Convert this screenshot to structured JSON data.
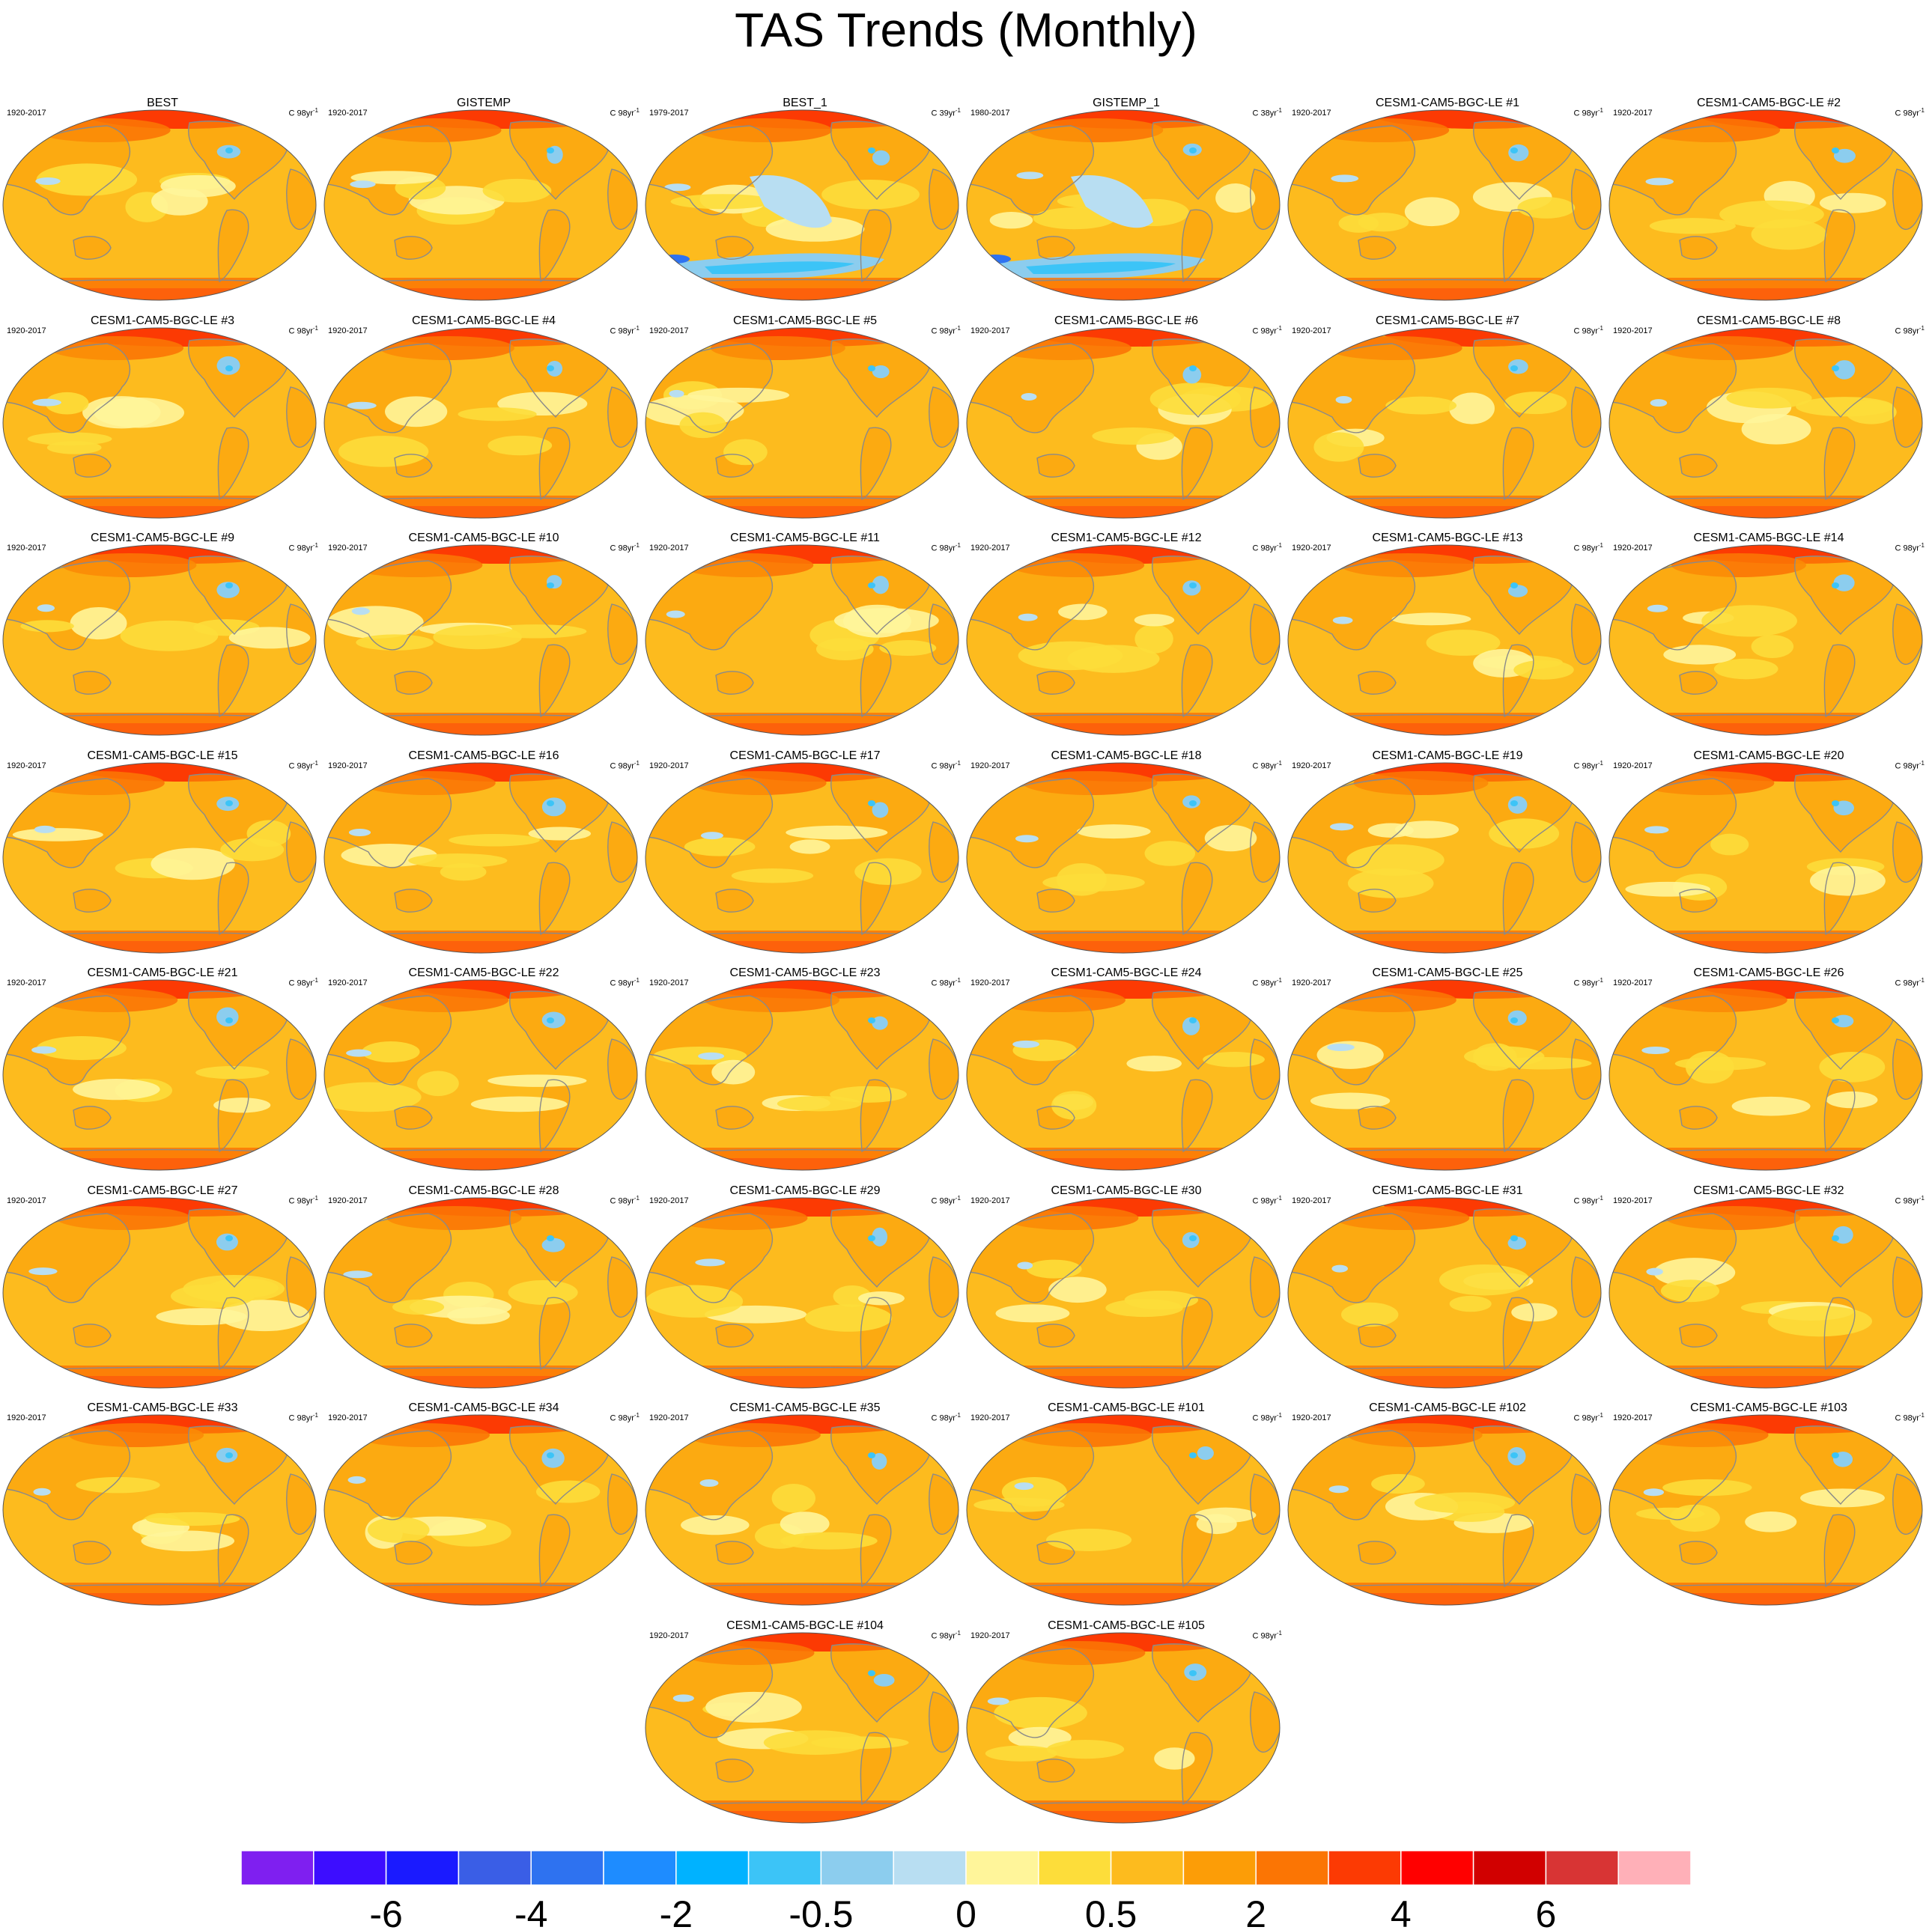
{
  "title": "TAS Trends (Monthly)",
  "panels": [
    {
      "name": "BEST",
      "period": "1920-2017",
      "units": "C 98yr",
      "units_exp": "-1",
      "variant": "obs"
    },
    {
      "name": "GISTEMP",
      "period": "1920-2017",
      "units": "C 98yr",
      "units_exp": "-1",
      "variant": "obs"
    },
    {
      "name": "BEST_1",
      "period": "1979-2017",
      "units": "C 39yr",
      "units_exp": "-1",
      "variant": "cool"
    },
    {
      "name": "GISTEMP_1",
      "period": "1980-2017",
      "units": "C 38yr",
      "units_exp": "-1",
      "variant": "cool"
    },
    {
      "name": "CESM1-CAM5-BGC-LE #1",
      "period": "1920-2017",
      "units": "C 98yr",
      "units_exp": "-1",
      "variant": "model"
    },
    {
      "name": "CESM1-CAM5-BGC-LE #2",
      "period": "1920-2017",
      "units": "C 98yr",
      "units_exp": "-1",
      "variant": "model"
    },
    {
      "name": "CESM1-CAM5-BGC-LE #3",
      "period": "1920-2017",
      "units": "C 98yr",
      "units_exp": "-1",
      "variant": "model"
    },
    {
      "name": "CESM1-CAM5-BGC-LE #4",
      "period": "1920-2017",
      "units": "C 98yr",
      "units_exp": "-1",
      "variant": "model"
    },
    {
      "name": "CESM1-CAM5-BGC-LE #5",
      "period": "1920-2017",
      "units": "C 98yr",
      "units_exp": "-1",
      "variant": "model"
    },
    {
      "name": "CESM1-CAM5-BGC-LE #6",
      "period": "1920-2017",
      "units": "C 98yr",
      "units_exp": "-1",
      "variant": "model"
    },
    {
      "name": "CESM1-CAM5-BGC-LE #7",
      "period": "1920-2017",
      "units": "C 98yr",
      "units_exp": "-1",
      "variant": "model"
    },
    {
      "name": "CESM1-CAM5-BGC-LE #8",
      "period": "1920-2017",
      "units": "C 98yr",
      "units_exp": "-1",
      "variant": "model"
    },
    {
      "name": "CESM1-CAM5-BGC-LE #9",
      "period": "1920-2017",
      "units": "C 98yr",
      "units_exp": "-1",
      "variant": "model"
    },
    {
      "name": "CESM1-CAM5-BGC-LE #10",
      "period": "1920-2017",
      "units": "C 98yr",
      "units_exp": "-1",
      "variant": "model"
    },
    {
      "name": "CESM1-CAM5-BGC-LE #11",
      "period": "1920-2017",
      "units": "C 98yr",
      "units_exp": "-1",
      "variant": "model"
    },
    {
      "name": "CESM1-CAM5-BGC-LE #12",
      "period": "1920-2017",
      "units": "C 98yr",
      "units_exp": "-1",
      "variant": "model"
    },
    {
      "name": "CESM1-CAM5-BGC-LE #13",
      "period": "1920-2017",
      "units": "C 98yr",
      "units_exp": "-1",
      "variant": "model"
    },
    {
      "name": "CESM1-CAM5-BGC-LE #14",
      "period": "1920-2017",
      "units": "C 98yr",
      "units_exp": "-1",
      "variant": "model"
    },
    {
      "name": "CESM1-CAM5-BGC-LE #15",
      "period": "1920-2017",
      "units": "C 98yr",
      "units_exp": "-1",
      "variant": "model"
    },
    {
      "name": "CESM1-CAM5-BGC-LE #16",
      "period": "1920-2017",
      "units": "C 98yr",
      "units_exp": "-1",
      "variant": "model"
    },
    {
      "name": "CESM1-CAM5-BGC-LE #17",
      "period": "1920-2017",
      "units": "C 98yr",
      "units_exp": "-1",
      "variant": "model"
    },
    {
      "name": "CESM1-CAM5-BGC-LE #18",
      "period": "1920-2017",
      "units": "C 98yr",
      "units_exp": "-1",
      "variant": "model"
    },
    {
      "name": "CESM1-CAM5-BGC-LE #19",
      "period": "1920-2017",
      "units": "C 98yr",
      "units_exp": "-1",
      "variant": "model"
    },
    {
      "name": "CESM1-CAM5-BGC-LE #20",
      "period": "1920-2017",
      "units": "C 98yr",
      "units_exp": "-1",
      "variant": "model"
    },
    {
      "name": "CESM1-CAM5-BGC-LE #21",
      "period": "1920-2017",
      "units": "C 98yr",
      "units_exp": "-1",
      "variant": "model"
    },
    {
      "name": "CESM1-CAM5-BGC-LE #22",
      "period": "1920-2017",
      "units": "C 98yr",
      "units_exp": "-1",
      "variant": "model"
    },
    {
      "name": "CESM1-CAM5-BGC-LE #23",
      "period": "1920-2017",
      "units": "C 98yr",
      "units_exp": "-1",
      "variant": "model"
    },
    {
      "name": "CESM1-CAM5-BGC-LE #24",
      "period": "1920-2017",
      "units": "C 98yr",
      "units_exp": "-1",
      "variant": "model"
    },
    {
      "name": "CESM1-CAM5-BGC-LE #25",
      "period": "1920-2017",
      "units": "C 98yr",
      "units_exp": "-1",
      "variant": "model"
    },
    {
      "name": "CESM1-CAM5-BGC-LE #26",
      "period": "1920-2017",
      "units": "C 98yr",
      "units_exp": "-1",
      "variant": "model"
    },
    {
      "name": "CESM1-CAM5-BGC-LE #27",
      "period": "1920-2017",
      "units": "C 98yr",
      "units_exp": "-1",
      "variant": "model"
    },
    {
      "name": "CESM1-CAM5-BGC-LE #28",
      "period": "1920-2017",
      "units": "C 98yr",
      "units_exp": "-1",
      "variant": "model"
    },
    {
      "name": "CESM1-CAM5-BGC-LE #29",
      "period": "1920-2017",
      "units": "C 98yr",
      "units_exp": "-1",
      "variant": "model"
    },
    {
      "name": "CESM1-CAM5-BGC-LE #30",
      "period": "1920-2017",
      "units": "C 98yr",
      "units_exp": "-1",
      "variant": "model"
    },
    {
      "name": "CESM1-CAM5-BGC-LE #31",
      "period": "1920-2017",
      "units": "C 98yr",
      "units_exp": "-1",
      "variant": "model"
    },
    {
      "name": "CESM1-CAM5-BGC-LE #32",
      "period": "1920-2017",
      "units": "C 98yr",
      "units_exp": "-1",
      "variant": "model"
    },
    {
      "name": "CESM1-CAM5-BGC-LE #33",
      "period": "1920-2017",
      "units": "C 98yr",
      "units_exp": "-1",
      "variant": "model"
    },
    {
      "name": "CESM1-CAM5-BGC-LE #34",
      "period": "1920-2017",
      "units": "C 98yr",
      "units_exp": "-1",
      "variant": "model"
    },
    {
      "name": "CESM1-CAM5-BGC-LE #35",
      "period": "1920-2017",
      "units": "C 98yr",
      "units_exp": "-1",
      "variant": "model"
    },
    {
      "name": "CESM1-CAM5-BGC-LE #101",
      "period": "1920-2017",
      "units": "C 98yr",
      "units_exp": "-1",
      "variant": "model"
    },
    {
      "name": "CESM1-CAM5-BGC-LE #102",
      "period": "1920-2017",
      "units": "C 98yr",
      "units_exp": "-1",
      "variant": "model"
    },
    {
      "name": "CESM1-CAM5-BGC-LE #103",
      "period": "1920-2017",
      "units": "C 98yr",
      "units_exp": "-1",
      "variant": "model"
    },
    {
      "name": "CESM1-CAM5-BGC-LE #104",
      "period": "1920-2017",
      "units": "C 98yr",
      "units_exp": "-1",
      "variant": "model"
    },
    {
      "name": "CESM1-CAM5-BGC-LE #105",
      "period": "1920-2017",
      "units": "C 98yr",
      "units_exp": "-1",
      "variant": "model"
    }
  ],
  "colorbar": {
    "colors": [
      "#7f1ff0",
      "#3d0dff",
      "#1a1aff",
      "#3a5ee6",
      "#2e72f0",
      "#1e8cff",
      "#00b2ff",
      "#3cc4f7",
      "#8ccdee",
      "#b8def2",
      "#fff59a",
      "#fddd3a",
      "#fdbb1e",
      "#fc9d07",
      "#fb7504",
      "#fc3a03",
      "#ff0000",
      "#d10000",
      "#d83434",
      "#ffb0b8"
    ],
    "labels": [
      {
        "text": "-6",
        "boundary": 2
      },
      {
        "text": "-4",
        "boundary": 4
      },
      {
        "text": "-2",
        "boundary": 6
      },
      {
        "text": "-0.5",
        "boundary": 8
      },
      {
        "text": "0",
        "boundary": 10
      },
      {
        "text": "0.5",
        "boundary": 12
      },
      {
        "text": "2",
        "boundary": 14
      },
      {
        "text": "4",
        "boundary": 16
      },
      {
        "text": "6",
        "boundary": 18
      }
    ]
  },
  "palette": {
    "ocean_base": "#fdbb1e",
    "land": "#fc9d07",
    "coast": "#8a8a8a",
    "warm": "#fb7504",
    "hot": "#fc3a03",
    "pale": "#fff59a",
    "yellow": "#fddd3a",
    "cool1": "#b8def2",
    "cool2": "#8ccdee",
    "cool3": "#3cc4f7",
    "cool4": "#2e72f0"
  }
}
